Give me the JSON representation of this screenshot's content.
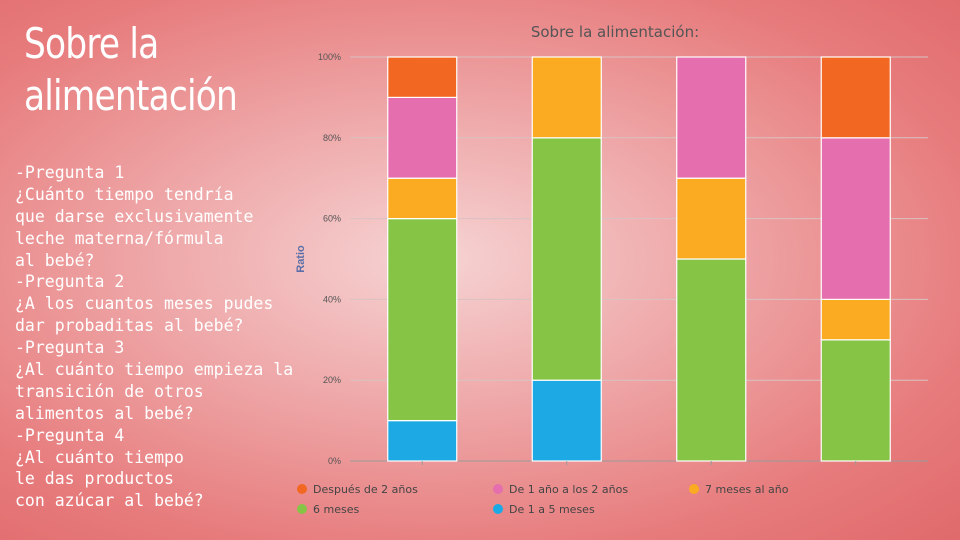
{
  "slide": {
    "title_lines": [
      "Sobre la",
      "alimentación"
    ],
    "question_lines": [
      "-Pregunta 1",
      "¿Cuánto tiempo tendría",
      "que darse exclusivamente",
      "leche materna/fórmula",
      "al bebé?",
      "-Pregunta 2",
      "¿A los cuantos meses pudes",
      "dar probaditas al bebé?",
      "-Pregunta 3",
      "¿Al cuánto tiempo empieza la",
      "transición de otros",
      "alimentos al bebé?",
      "-Pregunta 4",
      "¿Al cuánto tiempo",
      "le das productos",
      "con azúcar al bebé?"
    ]
  },
  "chart_data": {
    "type": "bar",
    "stacked": true,
    "title": "Sobre la alimentación:",
    "xlabel": "",
    "ylabel": "Ratio",
    "ylim": [
      0,
      100
    ],
    "yticks": [
      "0%",
      "20%",
      "40%",
      "60%",
      "80%",
      "100%"
    ],
    "grid": true,
    "legend_position": "bottom",
    "categories": [
      "",
      "",
      "",
      ""
    ],
    "series": [
      {
        "name": "De 1 a 5 meses",
        "color": "#1da9e3",
        "values": [
          10,
          20,
          0,
          0
        ]
      },
      {
        "name": "6 meses",
        "color": "#86c446",
        "values": [
          50,
          60,
          50,
          30
        ]
      },
      {
        "name": "7 meses al año",
        "color": "#fbab21",
        "values": [
          10,
          20,
          20,
          10
        ]
      },
      {
        "name": "De 1 año a los 2 años",
        "color": "#e56fae",
        "values": [
          20,
          0,
          30,
          40
        ]
      },
      {
        "name": "Después de 2 años",
        "color": "#f26722",
        "values": [
          10,
          0,
          0,
          20
        ]
      }
    ],
    "legend_order": [
      "Después de 2 años",
      "De 1 año a los 2 años",
      "7 meses al año",
      "6 meses",
      "De 1 a 5 meses"
    ]
  }
}
